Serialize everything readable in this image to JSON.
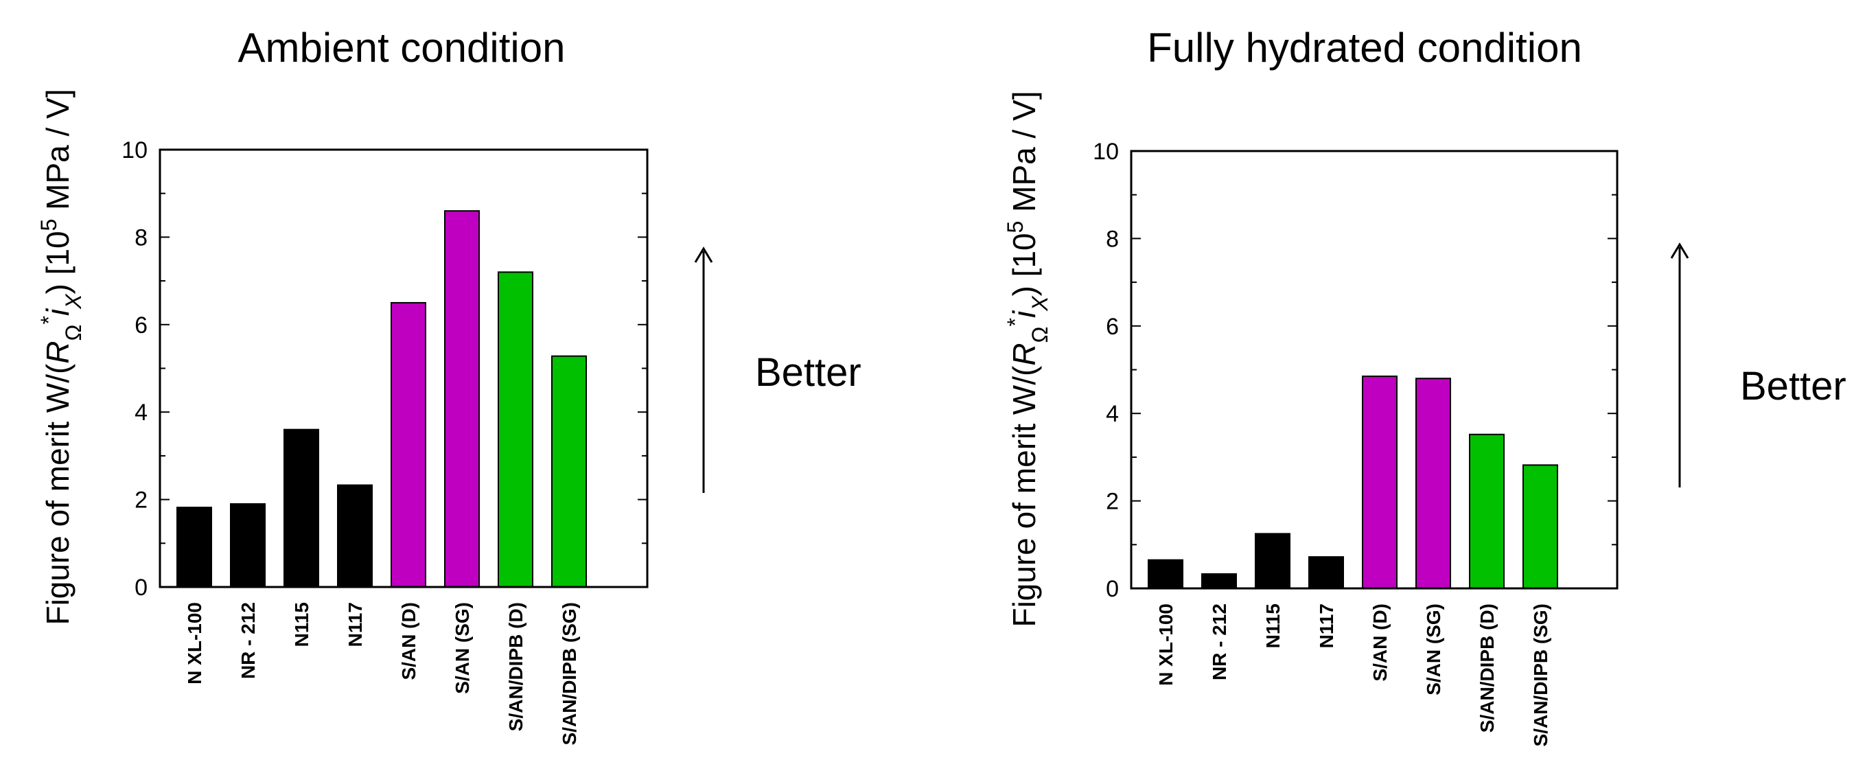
{
  "chart_data": [
    {
      "type": "bar",
      "title": "Ambient condition",
      "ylabel": "Figure of merit W/(R_Ω*i_X) [10^5 MPa / V]",
      "ylabel_parts": {
        "prefix": "Figure of merit W/(",
        "r": "R",
        "omega": "Ω",
        "star": "*",
        "i": "i",
        "x": "X",
        "suffix": ")  [10",
        "exp": "5",
        "unit": " MPa / V]"
      },
      "ylim": [
        0,
        10
      ],
      "yticks": [
        "0",
        "2",
        "4",
        "6",
        "8",
        "10"
      ],
      "categories": [
        "N XL-100",
        "NR - 212",
        "N115",
        "N117",
        "S/AN (D)",
        "S/AN (SG)",
        "S/AN/DIPB (D)",
        "S/AN/DIPB (SG)"
      ],
      "values": [
        1.82,
        1.9,
        3.6,
        2.33,
        6.5,
        8.6,
        7.2,
        5.28
      ],
      "colors": [
        "#000000",
        "#000000",
        "#000000",
        "#000000",
        "#c000c0",
        "#c000c0",
        "#00c000",
        "#00c000"
      ],
      "annotation": "Better",
      "grid": false
    },
    {
      "type": "bar",
      "title": "Fully hydrated condition",
      "ylabel": "Figure of merit W/(R_Ω*i_X) [10^5 MPa / V]",
      "ylabel_parts": {
        "prefix": "Figure of merit W/(",
        "r": "R",
        "omega": "Ω",
        "star": "*",
        "i": "i",
        "x": "X",
        "suffix": ")  [10",
        "exp": "5",
        "unit": " MPa / V]"
      },
      "ylim": [
        0,
        10
      ],
      "yticks": [
        "0",
        "2",
        "4",
        "6",
        "8",
        "10"
      ],
      "categories": [
        "N XL-100",
        "NR - 212",
        "N115",
        "N117",
        "S/AN (D)",
        "S/AN (SG)",
        "S/AN/DIPB (D)",
        "S/AN/DIPB (SG)"
      ],
      "values": [
        0.65,
        0.33,
        1.25,
        0.72,
        4.85,
        4.8,
        3.52,
        2.82
      ],
      "colors": [
        "#000000",
        "#000000",
        "#000000",
        "#000000",
        "#c000c0",
        "#c000c0",
        "#00c000",
        "#00c000"
      ],
      "annotation": "Better",
      "grid": false
    }
  ]
}
